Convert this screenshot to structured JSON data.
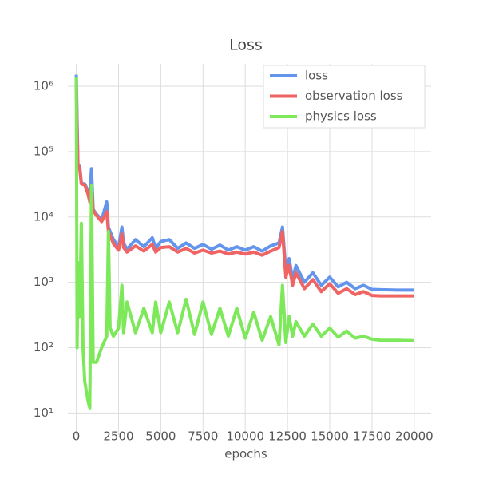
{
  "chart_data": {
    "type": "line",
    "title": "Loss",
    "x_label": "epochs",
    "log_y": true,
    "grid": true,
    "legend": "upper right",
    "xlim": [
      -500,
      21000
    ],
    "ylim": [
      4.6,
      2200000
    ],
    "xticks": [
      0,
      2500,
      5000,
      7500,
      10000,
      12500,
      15000,
      17500,
      20000
    ],
    "yticks": [
      {
        "value": 10,
        "label": "10¹"
      },
      {
        "value": 100,
        "label": "10²"
      },
      {
        "value": 1000,
        "label": "10³"
      },
      {
        "value": 10000,
        "label": "10⁴"
      },
      {
        "value": 100000,
        "label": "10⁵"
      },
      {
        "value": 1000000,
        "label": "10⁶"
      }
    ],
    "x": [
      0,
      50,
      100,
      200,
      300,
      400,
      500,
      700,
      800,
      900,
      1000,
      1200,
      1500,
      1800,
      1900,
      2000,
      2200,
      2500,
      2700,
      2800,
      3000,
      3500,
      4000,
      4500,
      4700,
      5000,
      5500,
      6000,
      6500,
      7000,
      7500,
      8000,
      8500,
      9000,
      9500,
      10000,
      10500,
      11000,
      11500,
      12000,
      12200,
      12400,
      12600,
      12800,
      13000,
      13500,
      14000,
      14500,
      15000,
      15500,
      16000,
      16500,
      17000,
      17500,
      18000,
      19000,
      20000
    ],
    "series": [
      {
        "name": "loss",
        "color": "#6495ed",
        "values": [
          1500000,
          300000,
          60000,
          60000,
          33000,
          32500,
          32000,
          25000,
          20000,
          55000,
          13000,
          11000,
          9000,
          17000,
          7000,
          6000,
          4500,
          3500,
          7000,
          4000,
          3200,
          4500,
          3500,
          4800,
          3300,
          4200,
          4500,
          3300,
          4000,
          3300,
          3800,
          3200,
          3700,
          3100,
          3500,
          3100,
          3500,
          3000,
          3600,
          4000,
          7000,
          1500,
          2300,
          1100,
          1800,
          1000,
          1400,
          900,
          1200,
          850,
          1000,
          800,
          900,
          780,
          770,
          760,
          760
        ]
      },
      {
        "name": "observation loss",
        "color": "#f06464",
        "values": [
          1000000,
          200000,
          58000,
          58000,
          32000,
          31500,
          31000,
          22000,
          17000,
          30000,
          12500,
          10500,
          8500,
          12000,
          6000,
          5200,
          3900,
          3100,
          5500,
          3400,
          2900,
          3600,
          3000,
          3800,
          2900,
          3400,
          3500,
          2900,
          3300,
          2800,
          3100,
          2800,
          3000,
          2700,
          2900,
          2700,
          2900,
          2600,
          3000,
          3400,
          6000,
          1200,
          1800,
          900,
          1400,
          800,
          1100,
          720,
          950,
          680,
          800,
          650,
          720,
          630,
          620,
          620,
          620
        ]
      },
      {
        "name": "physics loss",
        "color": "#7de85a",
        "values": [
          1400000,
          100,
          2000,
          300,
          8000,
          100,
          30,
          15,
          12,
          30000,
          60,
          60,
          100,
          150,
          6000,
          200,
          150,
          200,
          900,
          170,
          500,
          170,
          400,
          170,
          500,
          170,
          500,
          170,
          550,
          160,
          500,
          160,
          400,
          150,
          400,
          140,
          350,
          130,
          300,
          110,
          900,
          120,
          300,
          150,
          250,
          150,
          230,
          150,
          200,
          145,
          180,
          140,
          150,
          135,
          130,
          130,
          128
        ]
      }
    ]
  }
}
